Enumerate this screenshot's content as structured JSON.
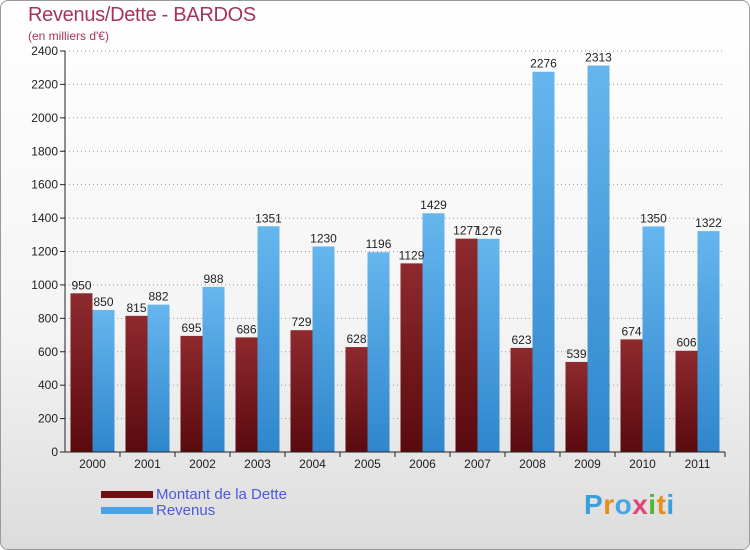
{
  "header": {
    "title": "Revenus/Dette - BARDOS",
    "subtitle": "(en milliers d'€)"
  },
  "legend": {
    "items": [
      {
        "label": "Montant de la Dette",
        "color": "#6e0f14"
      },
      {
        "label": "Revenus",
        "color": "#4aa3e6"
      }
    ]
  },
  "brand": {
    "logo_text": "Proxiti",
    "letter_colors": [
      "#3aa0dc",
      "#e58f1a",
      "#4aa3e6",
      "#e0457a",
      "#56b03a",
      "#e58f1a",
      "#3aa0dc"
    ]
  },
  "colors": {
    "debt_dark": "#5a0a0e",
    "debt_light": "#8e2a2e",
    "rev_dark": "#2f86cc",
    "rev_light": "#66b6ee",
    "axis": "#222222",
    "grid": "#9a9a9a"
  },
  "chart_data": {
    "type": "bar",
    "title": "Revenus/Dette - BARDOS",
    "ylabel": "(en milliers d'€)",
    "xlabel": "",
    "ylim": [
      0,
      2400
    ],
    "yticks": [
      0,
      200,
      400,
      600,
      800,
      1000,
      1200,
      1400,
      1600,
      1800,
      2000,
      2200,
      2400
    ],
    "grid": true,
    "categories": [
      "2000",
      "2001",
      "2002",
      "2003",
      "2004",
      "2005",
      "2006",
      "2007",
      "2008",
      "2009",
      "2010",
      "2011"
    ],
    "series": [
      {
        "name": "Montant de la Dette",
        "values": [
          950,
          815,
          695,
          686,
          729,
          628,
          1129,
          1277,
          623,
          539,
          674,
          606
        ]
      },
      {
        "name": "Revenus",
        "values": [
          850,
          882,
          988,
          1351,
          1230,
          1196,
          1429,
          1276,
          2276,
          2313,
          1350,
          1322
        ]
      }
    ]
  }
}
